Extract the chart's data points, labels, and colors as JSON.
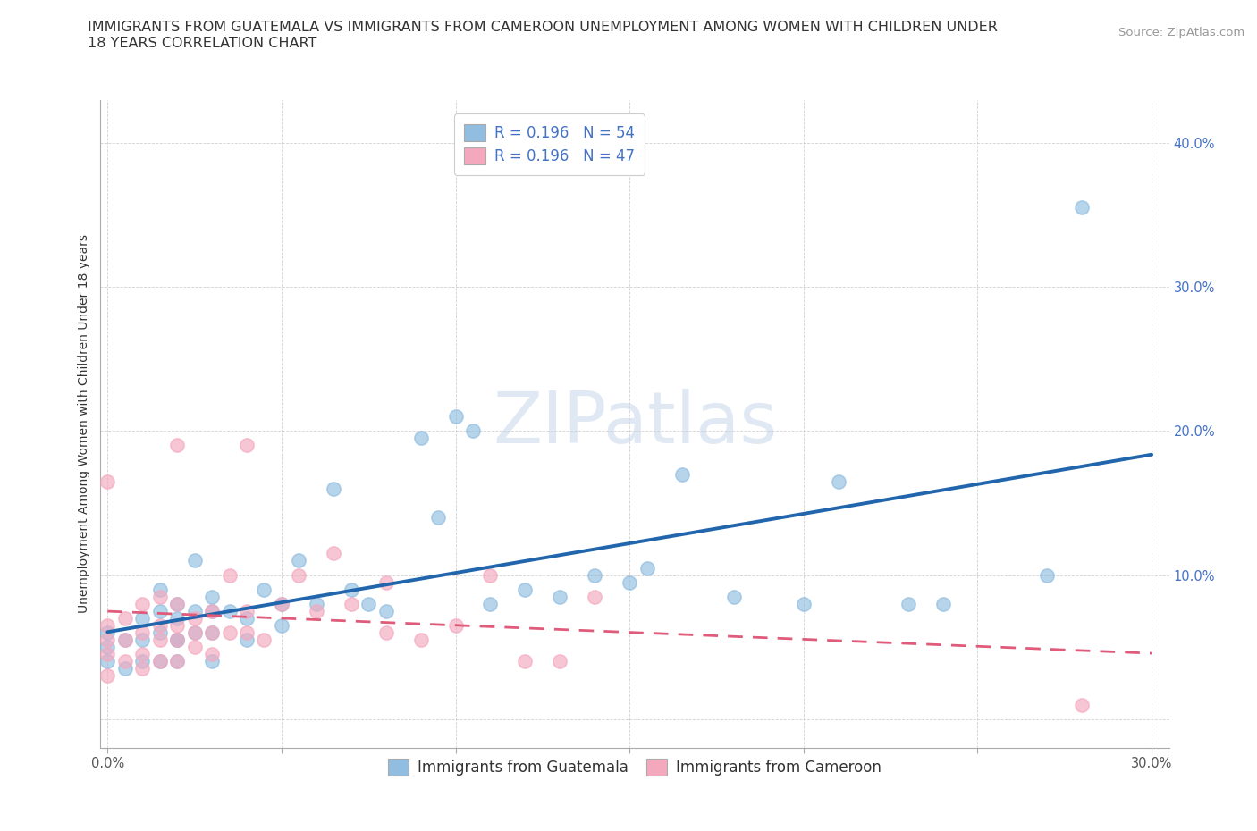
{
  "title_line1": "IMMIGRANTS FROM GUATEMALA VS IMMIGRANTS FROM CAMEROON UNEMPLOYMENT AMONG WOMEN WITH CHILDREN UNDER",
  "title_line2": "18 YEARS CORRELATION CHART",
  "source": "Source: ZipAtlas.com",
  "ylabel": "Unemployment Among Women with Children Under 18 years",
  "xlim": [
    -0.002,
    0.305
  ],
  "ylim": [
    -0.02,
    0.43
  ],
  "xticks": [
    0.0,
    0.05,
    0.1,
    0.15,
    0.2,
    0.25,
    0.3
  ],
  "yticks": [
    0.0,
    0.1,
    0.2,
    0.3,
    0.4
  ],
  "R_guatemala": 0.196,
  "N_guatemala": 54,
  "R_cameroon": 0.196,
  "N_cameroon": 47,
  "color_guatemala": "#90bde0",
  "color_cameroon": "#f4a8be",
  "trend_color_guatemala": "#2166ac",
  "trend_color_cameroon": "#e05a7a",
  "background_color": "#ffffff",
  "grid_color": "#cccccc",
  "guatemala_x": [
    0.0,
    0.0,
    0.0,
    0.005,
    0.005,
    0.01,
    0.01,
    0.01,
    0.015,
    0.015,
    0.015,
    0.015,
    0.02,
    0.02,
    0.02,
    0.02,
    0.02,
    0.025,
    0.025,
    0.025,
    0.03,
    0.03,
    0.03,
    0.03,
    0.035,
    0.04,
    0.04,
    0.045,
    0.05,
    0.05,
    0.055,
    0.06,
    0.065,
    0.07,
    0.075,
    0.08,
    0.09,
    0.095,
    0.1,
    0.105,
    0.11,
    0.12,
    0.13,
    0.14,
    0.15,
    0.155,
    0.165,
    0.18,
    0.2,
    0.21,
    0.23,
    0.24,
    0.27,
    0.28
  ],
  "guatemala_y": [
    0.04,
    0.05,
    0.06,
    0.035,
    0.055,
    0.04,
    0.055,
    0.07,
    0.04,
    0.06,
    0.075,
    0.09,
    0.04,
    0.055,
    0.07,
    0.055,
    0.08,
    0.06,
    0.075,
    0.11,
    0.04,
    0.06,
    0.075,
    0.085,
    0.075,
    0.055,
    0.07,
    0.09,
    0.065,
    0.08,
    0.11,
    0.08,
    0.16,
    0.09,
    0.08,
    0.075,
    0.195,
    0.14,
    0.21,
    0.2,
    0.08,
    0.09,
    0.085,
    0.1,
    0.095,
    0.105,
    0.17,
    0.085,
    0.08,
    0.165,
    0.08,
    0.08,
    0.1,
    0.355
  ],
  "cameroon_x": [
    0.0,
    0.0,
    0.0,
    0.0,
    0.0,
    0.005,
    0.005,
    0.005,
    0.01,
    0.01,
    0.01,
    0.01,
    0.015,
    0.015,
    0.015,
    0.015,
    0.02,
    0.02,
    0.02,
    0.02,
    0.02,
    0.025,
    0.025,
    0.025,
    0.03,
    0.03,
    0.03,
    0.035,
    0.035,
    0.04,
    0.04,
    0.04,
    0.045,
    0.05,
    0.055,
    0.06,
    0.065,
    0.07,
    0.08,
    0.08,
    0.09,
    0.1,
    0.11,
    0.12,
    0.13,
    0.14,
    0.28
  ],
  "cameroon_y": [
    0.03,
    0.045,
    0.055,
    0.065,
    0.165,
    0.04,
    0.055,
    0.07,
    0.035,
    0.045,
    0.06,
    0.08,
    0.04,
    0.055,
    0.065,
    0.085,
    0.04,
    0.055,
    0.065,
    0.08,
    0.19,
    0.05,
    0.06,
    0.07,
    0.045,
    0.06,
    0.075,
    0.06,
    0.1,
    0.06,
    0.075,
    0.19,
    0.055,
    0.08,
    0.1,
    0.075,
    0.115,
    0.08,
    0.06,
    0.095,
    0.055,
    0.065,
    0.1,
    0.04,
    0.04,
    0.085,
    0.01
  ],
  "title_fontsize": 11.5,
  "axis_label_fontsize": 10,
  "tick_fontsize": 10.5,
  "legend_fontsize": 12,
  "source_fontsize": 9.5,
  "watermark": "ZIPatlas",
  "legend_label_guatemala": "Immigrants from Guatemala",
  "legend_label_cameroon": "Immigrants from Cameroon"
}
